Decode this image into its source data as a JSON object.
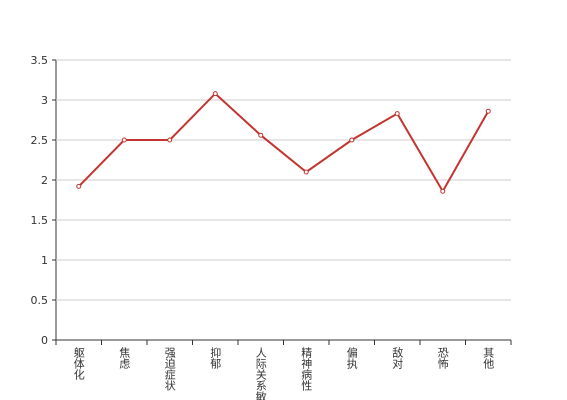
{
  "chart_data": {
    "type": "line",
    "categories": [
      "躯体化",
      "焦虑",
      "强迫症状",
      "抑郁",
      "人际关系敏感",
      "精神病性",
      "偏执",
      "敌对",
      "恐怖",
      "其他"
    ],
    "values": [
      1.92,
      2.5,
      2.5,
      3.08,
      2.56,
      2.1,
      2.5,
      2.83,
      1.86,
      2.86
    ],
    "color": "#c23531",
    "ylim": [
      0,
      3.5
    ],
    "yticks": [
      0,
      0.5,
      1,
      1.5,
      2,
      2.5,
      3,
      3.5
    ],
    "grid": true
  }
}
